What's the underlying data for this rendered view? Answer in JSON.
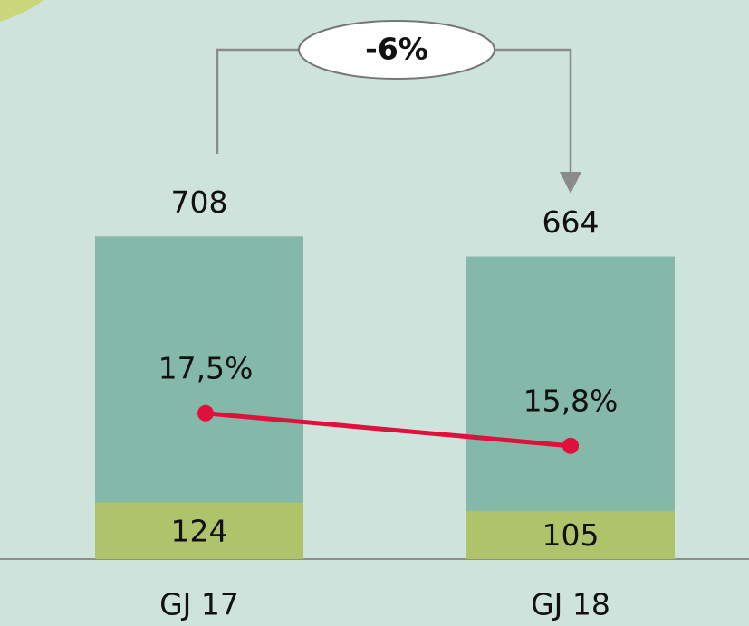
{
  "chart_data": {
    "type": "bar",
    "overlap": true,
    "categories": [
      "GJ 17",
      "GJ 18"
    ],
    "series": [
      {
        "color": "#84b8a8",
        "values": [
          708,
          664
        ]
      },
      {
        "color": "#afc36a",
        "values": [
          124,
          105
        ]
      },
      {
        "type": "line",
        "axis": "y2",
        "color": "#e0103c",
        "values": [
          17.5,
          15.8
        ],
        "value_labels": [
          "17,5%",
          "15,8%"
        ]
      }
    ],
    "ylim": [
      0,
      800
    ],
    "y2lim": [
      9.9,
      28.9
    ],
    "annotation": "-6%"
  }
}
